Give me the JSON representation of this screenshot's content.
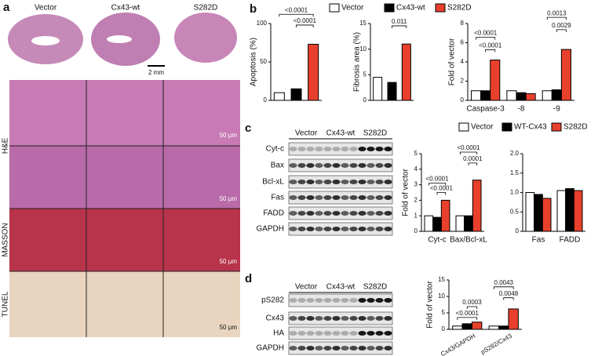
{
  "figure": {
    "panel_labels": [
      "a",
      "b",
      "c",
      "d"
    ]
  },
  "histology": {
    "groups": [
      "Vector",
      "Cx43-wt",
      "S282D"
    ],
    "scale_bar": "2 mm",
    "stains": [
      "H&E",
      "MASSON",
      "TUNEL"
    ],
    "micro_scale": [
      "50 µm",
      "50 µm",
      "50 µm",
      "50 µm"
    ]
  },
  "blot_c": {
    "groups": [
      "Vector",
      "Cx43-wt",
      "S282D"
    ],
    "bands": [
      "Cyt-c",
      "Bax",
      "Bcl-xL",
      "Fas",
      "FADD",
      "GAPDH"
    ]
  },
  "blot_d": {
    "groups": [
      "Vector",
      "Cx43-wt",
      "S282D"
    ],
    "bands": [
      "pS282",
      "Cx43",
      "HA",
      "GAPDH"
    ]
  },
  "chart_data": [
    {
      "type": "bar",
      "ylabel": "Apoptosis (%)",
      "categories": [
        null,
        null,
        null
      ],
      "values": [
        10,
        15,
        73
      ],
      "colors": [
        "#ffffff",
        "#000000",
        "#e8402c"
      ],
      "ylim": [
        0,
        100
      ],
      "yticks": [
        0,
        50,
        100
      ],
      "annotations": [
        "<0.0001",
        "<0.0001"
      ]
    },
    {
      "type": "bar",
      "ylabel": "Fibrosis area (%)",
      "categories": [
        null,
        null,
        null
      ],
      "values": [
        4.5,
        3.5,
        11
      ],
      "colors": [
        "#ffffff",
        "#000000",
        "#e8402c"
      ],
      "ylim": [
        0,
        15
      ],
      "yticks": [
        0,
        5,
        10,
        15
      ],
      "annotations": [
        "0.011"
      ]
    },
    {
      "type": "grouped-bar",
      "ylabel": "Fold of vector",
      "categories": [
        "Caspase-3",
        "-8",
        "-9"
      ],
      "series": [
        {
          "name": "Vector",
          "color": "#ffffff",
          "values": [
            1,
            1,
            1
          ]
        },
        {
          "name": "Cx43-wt",
          "color": "#000000",
          "values": [
            1,
            0.8,
            1.1
          ]
        },
        {
          "name": "S282D",
          "color": "#e8402c",
          "values": [
            4.2,
            0.7,
            5.3
          ]
        }
      ],
      "legend": "top",
      "ylim": [
        0,
        8
      ],
      "yticks": [
        0,
        2,
        4,
        6,
        8
      ],
      "annotations": [
        "<0.0001",
        "<0.0001",
        "0.0013",
        "0.0029"
      ]
    },
    {
      "type": "grouped-bar",
      "ylabel": "Fold of vector",
      "categories": [
        "Cyt-c",
        "Bax/Bcl-xL"
      ],
      "series": [
        {
          "name": "Vector",
          "color": "#ffffff",
          "values": [
            1,
            1
          ]
        },
        {
          "name": "WT-Cx43",
          "color": "#000000",
          "values": [
            0.9,
            1.0
          ]
        },
        {
          "name": "S282D",
          "color": "#e8402c",
          "values": [
            2.0,
            3.3
          ]
        }
      ],
      "legend": "top",
      "ylim": [
        0,
        5
      ],
      "yticks": [
        0,
        1,
        2,
        3,
        4,
        5
      ],
      "annotations": [
        "<0.0001",
        "<0.0001",
        "<0.0001",
        "0.0001"
      ]
    },
    {
      "type": "grouped-bar",
      "categories": [
        "Fas",
        "FADD"
      ],
      "series": [
        {
          "color": "#ffffff",
          "values": [
            1,
            1.05
          ]
        },
        {
          "color": "#000000",
          "values": [
            0.95,
            1.1
          ]
        },
        {
          "color": "#e8402c",
          "values": [
            0.85,
            1.05
          ]
        }
      ],
      "ylim": [
        0,
        2
      ],
      "yticks": [
        0,
        0.5,
        {
          "value": 1,
          "label": "1.0"
        },
        1.5,
        {
          "value": 2,
          "label": "2.0"
        }
      ],
      "annotations": []
    },
    {
      "type": "grouped-bar",
      "ylabel": "Fold of vector",
      "categories": [
        "Cx43/GAPDH",
        "pS282/Cx43"
      ],
      "series": [
        {
          "color": "#ffffff",
          "values": [
            1,
            1
          ]
        },
        {
          "color": "#000000",
          "values": [
            1.7,
            1
          ]
        },
        {
          "color": "#e8402c",
          "values": [
            2.2,
            6.2
          ]
        }
      ],
      "ylim": [
        0,
        15
      ],
      "yticks": [
        0,
        5,
        10,
        15
      ],
      "annotations": [
        "<0.0001",
        "0.0003",
        "0.0043",
        "0.0048"
      ]
    }
  ]
}
